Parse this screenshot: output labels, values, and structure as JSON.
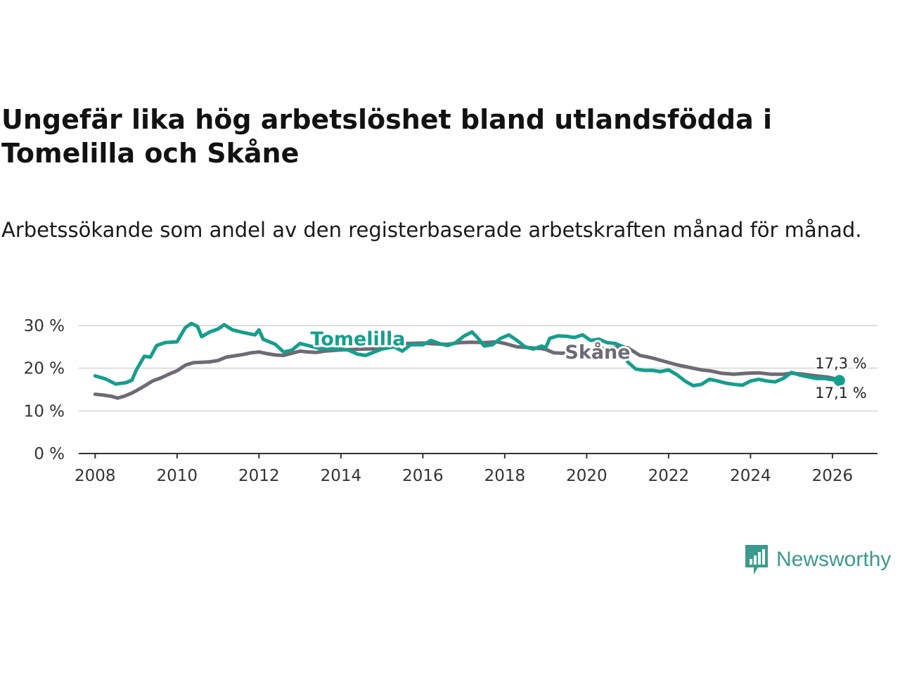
{
  "header": {
    "title": "Ungefär lika hög arbetslöshet bland utlandsfödda i Tomelilla och Skåne",
    "subtitle": "Arbetssökande som andel av den registerbaserade arbetskraften månad för månad."
  },
  "brand": {
    "name": "Newsworthy",
    "icon": "newsworthy-logo-icon",
    "color": "#3a9a8e"
  },
  "colors": {
    "tomelilla": "#159e8d",
    "skane": "#6e6a75",
    "grid": "#dddddd",
    "axis": "#333333"
  },
  "chart_data": {
    "type": "line",
    "title": "Ungefär lika hög arbetslöshet bland utlandsfödda i Tomelilla och Skåne",
    "xlabel": "",
    "ylabel": "",
    "xlim": [
      2007.6,
      2027.1
    ],
    "ylim": [
      0,
      30
    ],
    "x_ticks": [
      2008,
      2010,
      2012,
      2014,
      2016,
      2018,
      2020,
      2022,
      2024,
      2026
    ],
    "y_ticks": [
      {
        "value": 0,
        "label": "0 %"
      },
      {
        "value": 10,
        "label": "10 %"
      },
      {
        "value": 20,
        "label": "20 %"
      },
      {
        "value": 30,
        "label": "30 %"
      }
    ],
    "grid": true,
    "series": [
      {
        "name": "Tomelilla",
        "label": "Tomelilla",
        "end_label": "17,1 %",
        "points": [
          [
            2008.0,
            18.2
          ],
          [
            2008.25,
            17.5
          ],
          [
            2008.5,
            16.3
          ],
          [
            2008.75,
            16.6
          ],
          [
            2008.9,
            17.2
          ],
          [
            2009.0,
            19.5
          ],
          [
            2009.2,
            22.8
          ],
          [
            2009.35,
            22.6
          ],
          [
            2009.5,
            25.3
          ],
          [
            2009.7,
            26.0
          ],
          [
            2010.0,
            26.2
          ],
          [
            2010.2,
            29.5
          ],
          [
            2010.35,
            30.5
          ],
          [
            2010.5,
            29.8
          ],
          [
            2010.6,
            27.4
          ],
          [
            2010.8,
            28.5
          ],
          [
            2011.0,
            29.2
          ],
          [
            2011.15,
            30.2
          ],
          [
            2011.35,
            29.0
          ],
          [
            2011.6,
            28.4
          ],
          [
            2011.9,
            27.8
          ],
          [
            2012.0,
            29.0
          ],
          [
            2012.1,
            26.8
          ],
          [
            2012.4,
            25.6
          ],
          [
            2012.6,
            23.8
          ],
          [
            2012.8,
            24.2
          ],
          [
            2013.0,
            25.8
          ],
          [
            2013.5,
            24.6
          ],
          [
            2014.0,
            24.5
          ],
          [
            2014.2,
            24.2
          ],
          [
            2014.4,
            23.3
          ],
          [
            2014.6,
            23.0
          ],
          [
            2015.0,
            24.5
          ],
          [
            2015.3,
            25.0
          ],
          [
            2015.5,
            24.0
          ],
          [
            2015.7,
            25.5
          ],
          [
            2016.0,
            25.5
          ],
          [
            2016.2,
            26.5
          ],
          [
            2016.4,
            25.8
          ],
          [
            2016.6,
            25.3
          ],
          [
            2016.8,
            26.0
          ],
          [
            2017.0,
            27.5
          ],
          [
            2017.2,
            28.5
          ],
          [
            2017.35,
            27.0
          ],
          [
            2017.5,
            25.2
          ],
          [
            2017.7,
            25.5
          ],
          [
            2017.9,
            27.0
          ],
          [
            2018.1,
            27.8
          ],
          [
            2018.3,
            26.5
          ],
          [
            2018.5,
            25.0
          ],
          [
            2018.7,
            24.5
          ],
          [
            2018.9,
            25.2
          ],
          [
            2019.0,
            24.8
          ],
          [
            2019.1,
            27.0
          ],
          [
            2019.3,
            27.6
          ],
          [
            2019.5,
            27.5
          ],
          [
            2019.7,
            27.2
          ],
          [
            2019.9,
            27.8
          ],
          [
            2020.1,
            26.5
          ],
          [
            2020.3,
            26.8
          ],
          [
            2020.5,
            26.0
          ],
          [
            2020.7,
            25.8
          ],
          [
            2020.9,
            25.0
          ],
          [
            2021.0,
            21.5
          ],
          [
            2021.2,
            19.8
          ],
          [
            2021.4,
            19.5
          ],
          [
            2021.6,
            19.5
          ],
          [
            2021.8,
            19.2
          ],
          [
            2022.0,
            19.6
          ],
          [
            2022.2,
            18.5
          ],
          [
            2022.4,
            17.0
          ],
          [
            2022.6,
            15.9
          ],
          [
            2022.8,
            16.2
          ],
          [
            2023.0,
            17.4
          ],
          [
            2023.2,
            17.0
          ],
          [
            2023.4,
            16.5
          ],
          [
            2023.6,
            16.2
          ],
          [
            2023.8,
            16.0
          ],
          [
            2024.0,
            17.0
          ],
          [
            2024.2,
            17.4
          ],
          [
            2024.4,
            17.0
          ],
          [
            2024.6,
            16.8
          ],
          [
            2024.8,
            17.6
          ],
          [
            2025.0,
            19.0
          ],
          [
            2025.2,
            18.4
          ],
          [
            2025.4,
            18.0
          ],
          [
            2025.6,
            17.6
          ],
          [
            2025.8,
            17.6
          ],
          [
            2026.0,
            17.3
          ],
          [
            2026.17,
            17.1
          ]
        ]
      },
      {
        "name": "Skåne",
        "label": "Skåne",
        "end_label": "17,3 %",
        "points": [
          [
            2008.0,
            13.9
          ],
          [
            2008.2,
            13.7
          ],
          [
            2008.4,
            13.4
          ],
          [
            2008.55,
            13.0
          ],
          [
            2008.7,
            13.4
          ],
          [
            2008.9,
            14.2
          ],
          [
            2009.0,
            14.7
          ],
          [
            2009.2,
            15.8
          ],
          [
            2009.4,
            17.0
          ],
          [
            2009.6,
            17.7
          ],
          [
            2009.8,
            18.6
          ],
          [
            2010.0,
            19.4
          ],
          [
            2010.2,
            20.7
          ],
          [
            2010.4,
            21.3
          ],
          [
            2010.6,
            21.4
          ],
          [
            2010.8,
            21.5
          ],
          [
            2011.0,
            21.8
          ],
          [
            2011.2,
            22.6
          ],
          [
            2011.4,
            22.9
          ],
          [
            2011.6,
            23.2
          ],
          [
            2011.8,
            23.6
          ],
          [
            2012.0,
            23.8
          ],
          [
            2012.2,
            23.4
          ],
          [
            2012.4,
            23.1
          ],
          [
            2012.6,
            23.0
          ],
          [
            2012.8,
            23.5
          ],
          [
            2013.0,
            24.0
          ],
          [
            2013.2,
            23.8
          ],
          [
            2013.4,
            23.7
          ],
          [
            2013.6,
            24.0
          ],
          [
            2014.0,
            24.3
          ],
          [
            2014.3,
            24.4
          ],
          [
            2014.6,
            24.5
          ],
          [
            2015.0,
            24.6
          ],
          [
            2015.3,
            25.2
          ],
          [
            2015.6,
            25.8
          ],
          [
            2016.0,
            25.9
          ],
          [
            2016.3,
            25.7
          ],
          [
            2016.6,
            25.6
          ],
          [
            2016.9,
            26.0
          ],
          [
            2017.2,
            26.1
          ],
          [
            2017.5,
            26.0
          ],
          [
            2017.8,
            26.2
          ],
          [
            2018.0,
            25.8
          ],
          [
            2018.3,
            25.0
          ],
          [
            2018.6,
            24.8
          ],
          [
            2018.9,
            24.6
          ],
          [
            2019.0,
            24.4
          ],
          [
            2019.2,
            23.6
          ],
          [
            2019.4,
            23.5
          ],
          [
            2020.8,
            25.0
          ],
          [
            2021.0,
            24.8
          ],
          [
            2021.3,
            23.0
          ],
          [
            2021.6,
            22.4
          ],
          [
            2021.9,
            21.6
          ],
          [
            2022.2,
            20.8
          ],
          [
            2022.5,
            20.2
          ],
          [
            2022.8,
            19.6
          ],
          [
            2023.0,
            19.4
          ],
          [
            2023.3,
            18.8
          ],
          [
            2023.6,
            18.6
          ],
          [
            2023.9,
            18.8
          ],
          [
            2024.2,
            18.9
          ],
          [
            2024.5,
            18.6
          ],
          [
            2024.8,
            18.6
          ],
          [
            2025.0,
            18.8
          ],
          [
            2025.3,
            18.6
          ],
          [
            2025.6,
            18.2
          ],
          [
            2025.9,
            17.9
          ],
          [
            2026.17,
            17.3
          ]
        ]
      }
    ]
  }
}
